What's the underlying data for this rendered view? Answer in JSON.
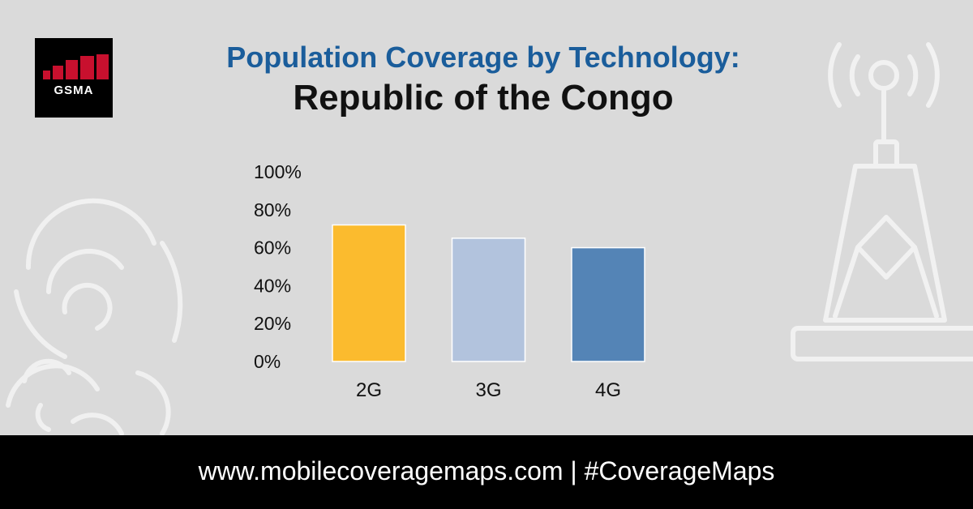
{
  "logo": {
    "text": "GSMA"
  },
  "header": {
    "title": "Population Coverage by Technology:",
    "subtitle": "Republic of the Congo"
  },
  "colors": {
    "title": "#1a5d9b",
    "background": "#dadada",
    "logo_red": "#c8102e"
  },
  "chart_data": {
    "type": "bar",
    "title": "Population Coverage by Technology:",
    "subtitle": "Republic of the Congo",
    "categories": [
      "2G",
      "3G",
      "4G"
    ],
    "values": [
      72,
      65,
      60
    ],
    "bar_colors": [
      "#fbbb2e",
      "#b2c3dd",
      "#5484b6"
    ],
    "ylim": [
      0,
      100
    ],
    "yticks": [
      "0%",
      "20%",
      "40%",
      "60%",
      "80%",
      "100%"
    ],
    "xlabel": "",
    "ylabel": "",
    "grid": false,
    "legend": "none"
  },
  "footer": {
    "text": "www.mobilecoveragemaps.com | #CoverageMaps"
  }
}
